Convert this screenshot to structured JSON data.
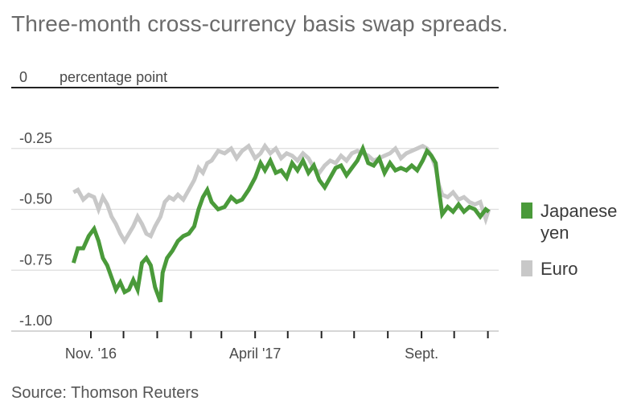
{
  "title": "Three-month cross-currency basis swap spreads.",
  "source": "Source: Thomson Reuters",
  "colors": {
    "japanese_yen": "#4a9a3a",
    "euro": "#c8c8c8",
    "grid": "#dddddd",
    "axis": "#222222"
  },
  "chart_data": {
    "type": "line",
    "title": "Three-month cross-currency basis swap spreads.",
    "unit_label": "percentage point",
    "ylim": [
      -1.0,
      0.0
    ],
    "y_ticks": [
      0,
      -0.25,
      -0.5,
      -0.75,
      -1.0
    ],
    "y_tick_labels": [
      "0",
      "-0.25",
      "-0.50",
      "-0.75",
      "-1.00"
    ],
    "x_range": [
      "2016-10-15",
      "2017-11-05"
    ],
    "x_tick_labels": [
      {
        "label": "Nov. '16",
        "date": "2016-11-01"
      },
      {
        "label": "April '17",
        "date": "2017-04-01"
      },
      {
        "label": "Sept.",
        "date": "2017-09-01"
      }
    ],
    "x_minor_ticks": [
      "2016-11-01",
      "2016-12-01",
      "2017-01-01",
      "2017-02-01",
      "2017-03-01",
      "2017-04-01",
      "2017-05-01",
      "2017-06-01",
      "2017-07-01",
      "2017-08-01",
      "2017-09-01",
      "2017-10-01",
      "2017-11-01"
    ],
    "grid": true,
    "legend_position": "right",
    "series": [
      {
        "name": "Japanese yen",
        "points": [
          [
            "2016-10-16",
            -0.72
          ],
          [
            "2016-10-20",
            -0.66
          ],
          [
            "2016-10-25",
            -0.66
          ],
          [
            "2016-10-30",
            -0.61
          ],
          [
            "2016-11-04",
            -0.58
          ],
          [
            "2016-11-08",
            -0.63
          ],
          [
            "2016-11-12",
            -0.7
          ],
          [
            "2016-11-16",
            -0.73
          ],
          [
            "2016-11-20",
            -0.78
          ],
          [
            "2016-11-24",
            -0.83
          ],
          [
            "2016-11-28",
            -0.8
          ],
          [
            "2016-12-02",
            -0.84
          ],
          [
            "2016-12-06",
            -0.83
          ],
          [
            "2016-12-10",
            -0.79
          ],
          [
            "2016-12-14",
            -0.83
          ],
          [
            "2016-12-18",
            -0.72
          ],
          [
            "2016-12-22",
            -0.7
          ],
          [
            "2016-12-26",
            -0.73
          ],
          [
            "2016-12-30",
            -0.82
          ],
          [
            "2017-01-04",
            -0.88
          ],
          [
            "2017-01-06",
            -0.76
          ],
          [
            "2017-01-10",
            -0.7
          ],
          [
            "2017-01-15",
            -0.67
          ],
          [
            "2017-01-20",
            -0.63
          ],
          [
            "2017-01-25",
            -0.61
          ],
          [
            "2017-01-30",
            -0.6
          ],
          [
            "2017-02-04",
            -0.57
          ],
          [
            "2017-02-08",
            -0.5
          ],
          [
            "2017-02-12",
            -0.45
          ],
          [
            "2017-02-16",
            -0.42
          ],
          [
            "2017-02-20",
            -0.47
          ],
          [
            "2017-02-26",
            -0.5
          ],
          [
            "2017-03-04",
            -0.49
          ],
          [
            "2017-03-10",
            -0.45
          ],
          [
            "2017-03-15",
            -0.47
          ],
          [
            "2017-03-20",
            -0.46
          ],
          [
            "2017-03-26",
            -0.42
          ],
          [
            "2017-04-01",
            -0.37
          ],
          [
            "2017-04-06",
            -0.31
          ],
          [
            "2017-04-10",
            -0.34
          ],
          [
            "2017-04-15",
            -0.3
          ],
          [
            "2017-04-20",
            -0.35
          ],
          [
            "2017-04-25",
            -0.34
          ],
          [
            "2017-04-30",
            -0.37
          ],
          [
            "2017-05-05",
            -0.31
          ],
          [
            "2017-05-10",
            -0.34
          ],
          [
            "2017-05-15",
            -0.3
          ],
          [
            "2017-05-20",
            -0.35
          ],
          [
            "2017-05-25",
            -0.32
          ],
          [
            "2017-05-30",
            -0.38
          ],
          [
            "2017-06-04",
            -0.41
          ],
          [
            "2017-06-09",
            -0.37
          ],
          [
            "2017-06-14",
            -0.33
          ],
          [
            "2017-06-19",
            -0.32
          ],
          [
            "2017-06-24",
            -0.36
          ],
          [
            "2017-06-29",
            -0.33
          ],
          [
            "2017-07-04",
            -0.3
          ],
          [
            "2017-07-09",
            -0.25
          ],
          [
            "2017-07-14",
            -0.31
          ],
          [
            "2017-07-19",
            -0.32
          ],
          [
            "2017-07-24",
            -0.29
          ],
          [
            "2017-07-29",
            -0.35
          ],
          [
            "2017-08-03",
            -0.31
          ],
          [
            "2017-08-08",
            -0.34
          ],
          [
            "2017-08-13",
            -0.33
          ],
          [
            "2017-08-18",
            -0.34
          ],
          [
            "2017-08-23",
            -0.32
          ],
          [
            "2017-08-28",
            -0.34
          ],
          [
            "2017-09-02",
            -0.3
          ],
          [
            "2017-09-06",
            -0.26
          ],
          [
            "2017-09-10",
            -0.28
          ],
          [
            "2017-09-14",
            -0.31
          ],
          [
            "2017-09-17",
            -0.42
          ],
          [
            "2017-09-20",
            -0.52
          ],
          [
            "2017-09-25",
            -0.49
          ],
          [
            "2017-09-30",
            -0.51
          ],
          [
            "2017-10-05",
            -0.48
          ],
          [
            "2017-10-10",
            -0.51
          ],
          [
            "2017-10-15",
            -0.49
          ],
          [
            "2017-10-20",
            -0.5
          ],
          [
            "2017-10-25",
            -0.53
          ],
          [
            "2017-10-30",
            -0.5
          ],
          [
            "2017-11-02",
            -0.51
          ]
        ]
      },
      {
        "name": "Euro",
        "points": [
          [
            "2016-10-16",
            -0.43
          ],
          [
            "2016-10-20",
            -0.42
          ],
          [
            "2016-10-25",
            -0.46
          ],
          [
            "2016-10-30",
            -0.44
          ],
          [
            "2016-11-04",
            -0.45
          ],
          [
            "2016-11-08",
            -0.5
          ],
          [
            "2016-11-12",
            -0.45
          ],
          [
            "2016-11-16",
            -0.48
          ],
          [
            "2016-11-20",
            -0.53
          ],
          [
            "2016-11-24",
            -0.56
          ],
          [
            "2016-11-28",
            -0.6
          ],
          [
            "2016-12-02",
            -0.63
          ],
          [
            "2016-12-06",
            -0.6
          ],
          [
            "2016-12-10",
            -0.57
          ],
          [
            "2016-12-14",
            -0.53
          ],
          [
            "2016-12-18",
            -0.56
          ],
          [
            "2016-12-22",
            -0.6
          ],
          [
            "2016-12-26",
            -0.61
          ],
          [
            "2016-12-30",
            -0.57
          ],
          [
            "2017-01-04",
            -0.53
          ],
          [
            "2017-01-08",
            -0.47
          ],
          [
            "2017-01-12",
            -0.45
          ],
          [
            "2017-01-16",
            -0.46
          ],
          [
            "2017-01-20",
            -0.44
          ],
          [
            "2017-01-25",
            -0.46
          ],
          [
            "2017-01-30",
            -0.42
          ],
          [
            "2017-02-04",
            -0.38
          ],
          [
            "2017-02-08",
            -0.33
          ],
          [
            "2017-02-12",
            -0.35
          ],
          [
            "2017-02-16",
            -0.31
          ],
          [
            "2017-02-20",
            -0.3
          ],
          [
            "2017-02-26",
            -0.26
          ],
          [
            "2017-03-04",
            -0.27
          ],
          [
            "2017-03-10",
            -0.25
          ],
          [
            "2017-03-15",
            -0.29
          ],
          [
            "2017-03-20",
            -0.26
          ],
          [
            "2017-03-26",
            -0.24
          ],
          [
            "2017-04-01",
            -0.29
          ],
          [
            "2017-04-06",
            -0.27
          ],
          [
            "2017-04-10",
            -0.24
          ],
          [
            "2017-04-15",
            -0.27
          ],
          [
            "2017-04-20",
            -0.25
          ],
          [
            "2017-04-25",
            -0.29
          ],
          [
            "2017-04-30",
            -0.27
          ],
          [
            "2017-05-05",
            -0.28
          ],
          [
            "2017-05-10",
            -0.3
          ],
          [
            "2017-05-15",
            -0.27
          ],
          [
            "2017-05-20",
            -0.29
          ],
          [
            "2017-05-25",
            -0.33
          ],
          [
            "2017-05-30",
            -0.35
          ],
          [
            "2017-06-04",
            -0.32
          ],
          [
            "2017-06-09",
            -0.3
          ],
          [
            "2017-06-14",
            -0.31
          ],
          [
            "2017-06-19",
            -0.28
          ],
          [
            "2017-06-24",
            -0.3
          ],
          [
            "2017-06-29",
            -0.27
          ],
          [
            "2017-07-04",
            -0.26
          ],
          [
            "2017-07-09",
            -0.27
          ],
          [
            "2017-07-14",
            -0.28
          ],
          [
            "2017-07-19",
            -0.3
          ],
          [
            "2017-07-24",
            -0.29
          ],
          [
            "2017-07-29",
            -0.28
          ],
          [
            "2017-08-03",
            -0.27
          ],
          [
            "2017-08-08",
            -0.25
          ],
          [
            "2017-08-13",
            -0.29
          ],
          [
            "2017-08-18",
            -0.27
          ],
          [
            "2017-08-23",
            -0.26
          ],
          [
            "2017-08-28",
            -0.25
          ],
          [
            "2017-09-02",
            -0.24
          ],
          [
            "2017-09-06",
            -0.25
          ],
          [
            "2017-09-10",
            -0.28
          ],
          [
            "2017-09-14",
            -0.33
          ],
          [
            "2017-09-17",
            -0.4
          ],
          [
            "2017-09-20",
            -0.44
          ],
          [
            "2017-09-25",
            -0.45
          ],
          [
            "2017-09-30",
            -0.43
          ],
          [
            "2017-10-05",
            -0.46
          ],
          [
            "2017-10-10",
            -0.45
          ],
          [
            "2017-10-15",
            -0.47
          ],
          [
            "2017-10-20",
            -0.48
          ],
          [
            "2017-10-25",
            -0.47
          ],
          [
            "2017-10-30",
            -0.54
          ],
          [
            "2017-11-02",
            -0.5
          ]
        ]
      }
    ]
  }
}
